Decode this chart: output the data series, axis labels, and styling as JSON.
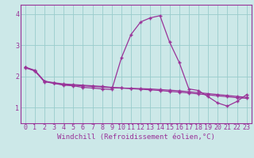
{
  "xlabel": "Windchill (Refroidissement éolien,°C)",
  "bg_color": "#cce8e8",
  "line_color": "#993399",
  "grid_color": "#99cccc",
  "xlim": [
    -0.5,
    23.5
  ],
  "ylim": [
    0.5,
    4.3
  ],
  "yticks": [
    1,
    2,
    3,
    4
  ],
  "xticks": [
    0,
    1,
    2,
    3,
    4,
    5,
    6,
    7,
    8,
    9,
    10,
    11,
    12,
    13,
    14,
    15,
    16,
    17,
    18,
    19,
    20,
    21,
    22,
    23
  ],
  "series1_x": [
    0,
    1,
    2,
    3,
    4,
    5,
    6,
    7,
    8,
    9,
    10,
    11,
    12,
    13,
    14,
    15,
    16,
    17,
    18,
    19,
    20,
    21,
    22,
    23
  ],
  "series1_y": [
    2.3,
    2.2,
    1.85,
    1.8,
    1.76,
    1.74,
    1.72,
    1.7,
    1.68,
    1.65,
    1.63,
    1.61,
    1.59,
    1.57,
    1.55,
    1.52,
    1.5,
    1.47,
    1.44,
    1.41,
    1.38,
    1.35,
    1.32,
    1.3
  ],
  "series2_x": [
    0,
    1,
    2,
    3,
    4,
    5,
    6,
    7,
    8,
    9,
    10,
    11,
    12,
    13,
    14,
    15,
    16,
    17,
    18,
    19,
    20,
    21,
    22,
    23
  ],
  "series2_y": [
    2.28,
    2.18,
    1.83,
    1.78,
    1.74,
    1.72,
    1.7,
    1.68,
    1.66,
    1.64,
    1.63,
    1.62,
    1.61,
    1.6,
    1.58,
    1.56,
    1.54,
    1.51,
    1.48,
    1.45,
    1.42,
    1.39,
    1.36,
    1.33
  ],
  "series3_x": [
    0,
    1,
    2,
    3,
    4,
    5,
    6,
    7,
    8,
    9,
    10,
    11,
    12,
    13,
    14,
    15,
    16,
    17,
    18,
    19,
    20,
    21,
    22,
    23
  ],
  "series3_y": [
    2.3,
    2.18,
    1.85,
    1.78,
    1.72,
    1.7,
    1.65,
    1.63,
    1.6,
    1.58,
    2.6,
    3.35,
    3.75,
    3.88,
    3.95,
    3.1,
    2.45,
    1.6,
    1.55,
    1.35,
    1.15,
    1.05,
    1.2,
    1.42
  ],
  "marker": "+",
  "markersize": 3,
  "linewidth": 0.9,
  "xlabel_fontsize": 6.5,
  "tick_fontsize": 6,
  "xlabel_color": "#993399",
  "spine_color": "#993399"
}
